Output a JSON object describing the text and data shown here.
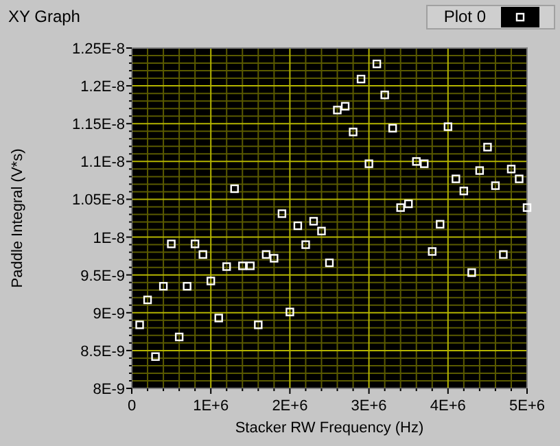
{
  "chart_data": {
    "type": "scatter",
    "title": "XY Graph",
    "xlabel": "Stacker RW Frequency (Hz)",
    "ylabel": "Paddle Integral (V*s)",
    "x": [
      100000,
      200000,
      300000,
      400000,
      500000,
      600000,
      700000,
      800000,
      900000,
      1000000,
      1100000,
      1200000,
      1300000,
      1400000,
      1500000,
      1600000,
      1700000,
      1800000,
      1900000,
      2000000,
      2100000,
      2200000,
      2300000,
      2400000,
      2500000,
      2600000,
      2700000,
      2800000,
      2900000,
      3000000,
      3100000,
      3200000,
      3300000,
      3400000,
      3500000,
      3600000,
      3700000,
      3800000,
      3900000,
      4000000,
      4100000,
      4200000,
      4300000,
      4400000,
      4500000,
      4600000,
      4700000,
      4800000,
      4900000,
      5000000
    ],
    "series": [
      {
        "name": "Plot 0",
        "color": "#ffffff",
        "values": [
          8.84e-09,
          9.17e-09,
          8.42e-09,
          9.35e-09,
          9.91e-09,
          8.68e-09,
          9.35e-09,
          9.91e-09,
          9.77e-09,
          9.42e-09,
          8.93e-09,
          9.61e-09,
          1.064e-08,
          9.62e-09,
          9.62e-09,
          8.84e-09,
          9.77e-09,
          9.72e-09,
          1.031e-08,
          9.01e-09,
          1.015e-08,
          9.9e-09,
          1.021e-08,
          1.008e-08,
          9.66e-09,
          1.168e-08,
          1.173e-08,
          1.139e-08,
          1.209e-08,
          1.097e-08,
          1.229e-08,
          1.188e-08,
          1.144e-08,
          1.039e-08,
          1.044e-08,
          1.1e-08,
          1.097e-08,
          9.81e-09,
          1.017e-08,
          1.146e-08,
          1.077e-08,
          1.061e-08,
          9.53e-09,
          1.088e-08,
          1.119e-08,
          1.068e-08,
          9.77e-09,
          1.09e-08,
          1.077e-08,
          1.039e-08
        ]
      }
    ],
    "xlim": [
      0,
      5000000
    ],
    "xticks": [
      0,
      {
        "value": 1000000,
        "label": "1E+6"
      },
      {
        "value": 2000000,
        "label": "2E+6"
      },
      {
        "value": 3000000,
        "label": "3E+6"
      },
      {
        "value": 4000000,
        "label": "4E+6"
      },
      {
        "value": 5000000,
        "label": "5E+6"
      },
      {
        "value": 200000,
        "label": null
      },
      {
        "value": 400000,
        "label": null
      },
      {
        "value": 600000,
        "label": null
      },
      {
        "value": 800000,
        "label": null
      },
      {
        "value": 1200000,
        "label": null
      },
      {
        "value": 1400000,
        "label": null
      },
      {
        "value": 1600000,
        "label": null
      },
      {
        "value": 1800000,
        "label": null
      },
      {
        "value": 2200000,
        "label": null
      },
      {
        "value": 2400000,
        "label": null
      },
      {
        "value": 2600000,
        "label": null
      },
      {
        "value": 2800000,
        "label": null
      },
      {
        "value": 3200000,
        "label": null
      },
      {
        "value": 3400000,
        "label": null
      },
      {
        "value": 3600000,
        "label": null
      },
      {
        "value": 3800000,
        "label": null
      },
      {
        "value": 4200000,
        "label": null
      },
      {
        "value": 4400000,
        "label": null
      },
      {
        "value": 4600000,
        "label": null
      },
      {
        "value": 4800000,
        "label": null
      }
    ],
    "ylim": [
      8e-09,
      1.25e-08
    ],
    "yticks": [
      {
        "value": 8e-09,
        "label": "8E-9"
      },
      {
        "value": 8.5e-09,
        "label": "8.5E-9"
      },
      {
        "value": 9e-09,
        "label": "9E-9"
      },
      {
        "value": 9.5e-09,
        "label": "9.5E-9"
      },
      {
        "value": 1e-08,
        "label": "1E-8"
      },
      {
        "value": 1.05e-08,
        "label": "1.05E-8"
      },
      {
        "value": 1.1e-08,
        "label": "1.1E-8"
      },
      {
        "value": 1.15e-08,
        "label": "1.15E-8"
      },
      {
        "value": 1.2e-08,
        "label": "1.2E-8"
      },
      {
        "value": 1.25e-08,
        "label": "1.25E-8"
      },
      {
        "value": 8.1e-09,
        "label": null
      },
      {
        "value": 8.2e-09,
        "label": null
      },
      {
        "value": 8.3e-09,
        "label": null
      },
      {
        "value": 8.4e-09,
        "label": null
      },
      {
        "value": 8.6e-09,
        "label": null
      },
      {
        "value": 8.7e-09,
        "label": null
      },
      {
        "value": 8.8e-09,
        "label": null
      },
      {
        "value": 8.9e-09,
        "label": null
      },
      {
        "value": 9.1e-09,
        "label": null
      },
      {
        "value": 9.2e-09,
        "label": null
      },
      {
        "value": 9.3e-09,
        "label": null
      },
      {
        "value": 9.4e-09,
        "label": null
      },
      {
        "value": 9.6e-09,
        "label": null
      },
      {
        "value": 9.7e-09,
        "label": null
      },
      {
        "value": 9.8e-09,
        "label": null
      },
      {
        "value": 9.9e-09,
        "label": null
      },
      {
        "value": 1.01e-08,
        "label": null
      },
      {
        "value": 1.02e-08,
        "label": null
      },
      {
        "value": 1.03e-08,
        "label": null
      },
      {
        "value": 1.04e-08,
        "label": null
      },
      {
        "value": 1.06e-08,
        "label": null
      },
      {
        "value": 1.07e-08,
        "label": null
      },
      {
        "value": 1.08e-08,
        "label": null
      },
      {
        "value": 1.09e-08,
        "label": null
      },
      {
        "value": 1.11e-08,
        "label": null
      },
      {
        "value": 1.12e-08,
        "label": null
      },
      {
        "value": 1.13e-08,
        "label": null
      },
      {
        "value": 1.14e-08,
        "label": null
      },
      {
        "value": 1.16e-08,
        "label": null
      },
      {
        "value": 1.17e-08,
        "label": null
      },
      {
        "value": 1.18e-08,
        "label": null
      },
      {
        "value": 1.19e-08,
        "label": null
      },
      {
        "value": 1.21e-08,
        "label": null
      },
      {
        "value": 1.22e-08,
        "label": null
      },
      {
        "value": 1.23e-08,
        "label": null
      },
      {
        "value": 1.24e-08,
        "label": null
      }
    ],
    "grid": true,
    "legend": "top right",
    "marker": "square"
  }
}
